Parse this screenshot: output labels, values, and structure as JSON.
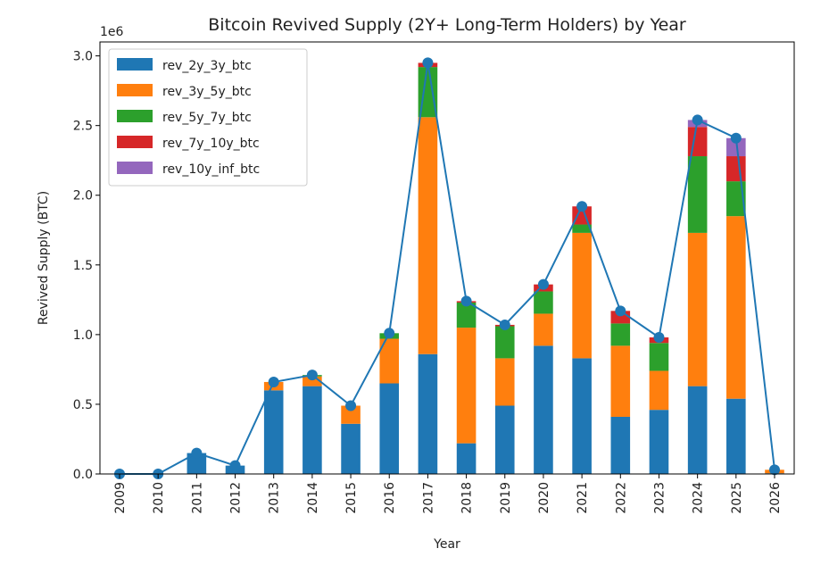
{
  "chart_data": {
    "type": "bar",
    "stacked": true,
    "title": "Bitcoin Revived Supply (2Y+ Long-Term Holders) by Year",
    "xlabel": "Year",
    "ylabel": "Revived Supply (BTC)",
    "y_offset_label": "1e6",
    "ylim": [
      0,
      3.1
    ],
    "y_unit_multiplier": 1000000,
    "yticks": [
      0.0,
      0.5,
      1.0,
      1.5,
      2.0,
      2.5,
      3.0
    ],
    "ytick_labels": [
      "0.0",
      "0.5",
      "1.0",
      "1.5",
      "2.0",
      "2.5",
      "3.0"
    ],
    "grid": false,
    "legend_position": "top-left",
    "categories": [
      "2009",
      "2010",
      "2011",
      "2012",
      "2013",
      "2014",
      "2015",
      "2016",
      "2017",
      "2018",
      "2019",
      "2020",
      "2021",
      "2022",
      "2023",
      "2024",
      "2025",
      "2026"
    ],
    "series": [
      {
        "name": "rev_2y_3y_btc",
        "color": "#1f77b4",
        "values": [
          0,
          0,
          0.15,
          0.06,
          0.6,
          0.63,
          0.36,
          0.65,
          0.86,
          0.22,
          0.49,
          0.92,
          0.83,
          0.41,
          0.46,
          0.63,
          0.54,
          0.005
        ]
      },
      {
        "name": "rev_3y_5y_btc",
        "color": "#ff7f0e",
        "values": [
          0,
          0,
          0,
          0,
          0.06,
          0.07,
          0.13,
          0.32,
          1.7,
          0.83,
          0.34,
          0.23,
          0.9,
          0.51,
          0.28,
          1.1,
          1.31,
          0.025
        ]
      },
      {
        "name": "rev_5y_7y_btc",
        "color": "#2ca02c",
        "values": [
          0,
          0,
          0,
          0,
          0,
          0.01,
          0,
          0.04,
          0.36,
          0.18,
          0.23,
          0.16,
          0.06,
          0.16,
          0.2,
          0.55,
          0.25,
          0
        ]
      },
      {
        "name": "rev_7y_10y_btc",
        "color": "#d62728",
        "values": [
          0,
          0,
          0,
          0,
          0,
          0,
          0,
          0,
          0.03,
          0.01,
          0.01,
          0.05,
          0.13,
          0.09,
          0.04,
          0.21,
          0.18,
          0
        ]
      },
      {
        "name": "rev_10y_inf_btc",
        "color": "#9467bd",
        "values": [
          0,
          0,
          0,
          0,
          0,
          0,
          0,
          0,
          0,
          0,
          0,
          0,
          0,
          0,
          0,
          0.05,
          0.13,
          0
        ]
      }
    ],
    "total_line": {
      "color": "#1f77b4",
      "marker": "circle",
      "values": [
        0,
        0,
        0.15,
        0.06,
        0.66,
        0.71,
        0.49,
        1.01,
        2.95,
        1.24,
        1.07,
        1.36,
        1.92,
        1.17,
        0.98,
        2.54,
        2.41,
        0.03
      ]
    }
  }
}
